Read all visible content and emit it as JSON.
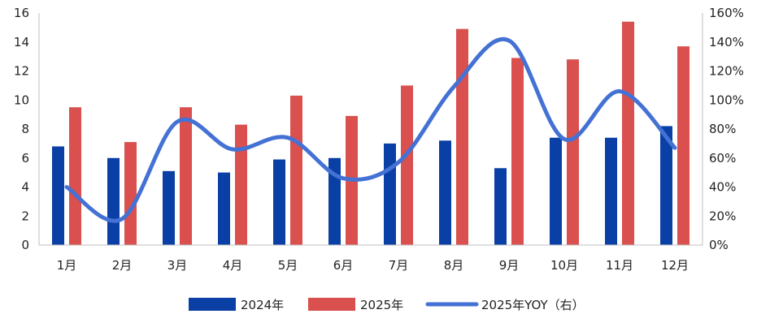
{
  "chart_data": {
    "type": "bar",
    "categories": [
      "1月",
      "2月",
      "3月",
      "4月",
      "5月",
      "6月",
      "7月",
      "8月",
      "9月",
      "10月",
      "11月",
      "12月"
    ],
    "series": [
      {
        "name": "2024年",
        "type": "bar",
        "axis": "left",
        "color": "#0a3fa5",
        "values": [
          6.8,
          6.0,
          5.1,
          5.0,
          5.9,
          6.0,
          7.0,
          7.2,
          5.3,
          7.4,
          7.4,
          8.2
        ]
      },
      {
        "name": "2025年",
        "type": "bar",
        "axis": "left",
        "color": "#d9504f",
        "values": [
          9.5,
          7.1,
          9.5,
          8.3,
          10.3,
          8.9,
          11.0,
          14.9,
          12.9,
          12.8,
          15.4,
          13.7
        ]
      },
      {
        "name": "2025年YOY（右）",
        "type": "line",
        "axis": "right",
        "color": "#4472d4",
        "values": [
          40,
          18,
          85,
          66,
          74,
          46,
          57,
          109,
          141,
          73,
          106,
          67
        ]
      }
    ],
    "left_axis": {
      "min": 0,
      "max": 16,
      "step": 2,
      "ticks": [
        "0",
        "2",
        "4",
        "6",
        "8",
        "10",
        "12",
        "14",
        "16"
      ]
    },
    "right_axis": {
      "min": 0,
      "max": 160,
      "step": 20,
      "ticks": [
        "0%",
        "20%",
        "40%",
        "60%",
        "80%",
        "100%",
        "120%",
        "140%",
        "160%"
      ]
    },
    "grid": false,
    "legend_position": "bottom"
  }
}
